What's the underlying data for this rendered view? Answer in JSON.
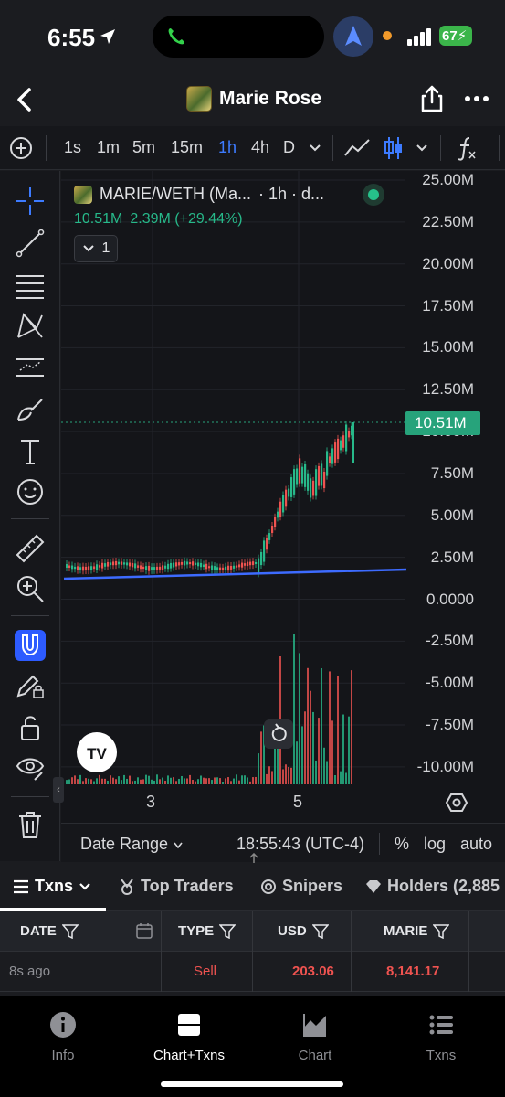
{
  "status": {
    "time": "6:55",
    "battery": "67"
  },
  "header": {
    "title": "Marie Rose"
  },
  "toolbar": {
    "intervals": [
      "1s",
      "1m",
      "5m",
      "15m",
      "1h",
      "4h",
      "D"
    ],
    "active_interval": "1h"
  },
  "chart_info": {
    "symbol": "MARIE/WETH (Ma...",
    "meta": "· 1h · d...",
    "price": "10.51M",
    "change": "2.39M (+29.44%)",
    "indicator_count": "1",
    "last_price_tag": "10.51M"
  },
  "chart_data": {
    "type": "line",
    "ylabels": [
      "25.00M",
      "22.50M",
      "20.00M",
      "17.50M",
      "15.00M",
      "12.50M",
      "10.00M",
      "7.50M",
      "5.00M",
      "2.50M",
      "0.0000",
      "-2.50M",
      "-5.00M",
      "-7.50M",
      "-10.00M"
    ],
    "xlabels": [
      "3",
      "5"
    ],
    "ylim": [
      -10000000,
      25000000
    ]
  },
  "chart_footer": {
    "date_range": "Date Range",
    "clock": "18:55:43 (UTC-4)",
    "percent": "%",
    "log": "log",
    "auto": "auto"
  },
  "tabs": [
    {
      "label": "Txns"
    },
    {
      "label": "Top Traders"
    },
    {
      "label": "Snipers"
    },
    {
      "label": "Holders (2,885"
    }
  ],
  "table": {
    "headers": [
      "DATE",
      "TYPE",
      "USD",
      "MARIE"
    ],
    "rows": [
      {
        "date": "8s ago",
        "type": "Sell",
        "usd": "203.06",
        "marie": "8,141.17"
      }
    ]
  },
  "bottom_nav": [
    {
      "label": "Info"
    },
    {
      "label": "Chart+Txns"
    },
    {
      "label": "Chart"
    },
    {
      "label": "Txns"
    }
  ],
  "colors": {
    "up": "#27b98a",
    "down": "#ef5350",
    "accent": "#3d7bff",
    "trendline": "#3d6bff"
  }
}
